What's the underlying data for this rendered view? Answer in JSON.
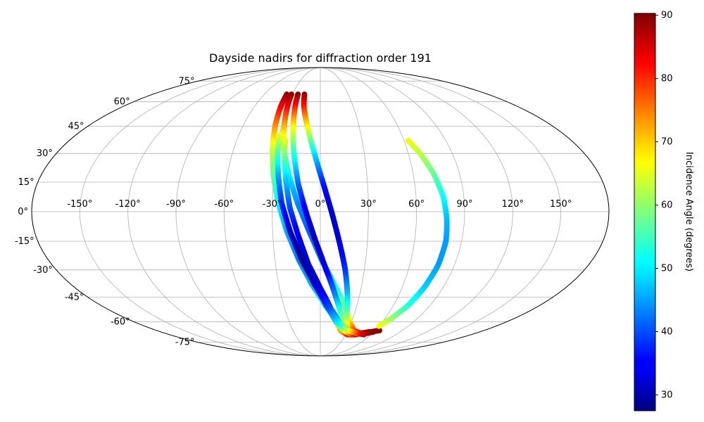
{
  "chart_data": {
    "type": "scatter",
    "projection": "mollweide",
    "title": "Dayside nadirs for diffraction order 191",
    "grid": true,
    "lon_ticks": [
      "-150°",
      "-120°",
      "-90°",
      "-60°",
      "-30°",
      "0°",
      "30°",
      "60°",
      "90°",
      "120°",
      "150°"
    ],
    "lat_ticks": [
      "75°",
      "60°",
      "45°",
      "30°",
      "15°",
      "0°",
      "-15°",
      "-30°",
      "-45°",
      "-60°",
      "-75°"
    ],
    "colorbar": {
      "label": "Incidence Angle (degrees)",
      "colormap": "jet",
      "vmin": 27.5,
      "vmax": 90.3,
      "ticks": [
        "30",
        "40",
        "50",
        "60",
        "70",
        "80",
        "90"
      ]
    },
    "series": [
      {
        "lon": [
          -36,
          -36,
          -35,
          -33,
          -30,
          -26,
          -21,
          -14,
          -6,
          4,
          15,
          22,
          32,
          41,
          49,
          55
        ],
        "lat": [
          65,
          57,
          45,
          32,
          18,
          4,
          -10,
          -25,
          -38,
          -50,
          -60,
          -66,
          -69,
          -69,
          -68,
          -67
        ],
        "inc": [
          90,
          84,
          74,
          64,
          57,
          51,
          46,
          43,
          46,
          52,
          62,
          71,
          80,
          86,
          89,
          90
        ]
      },
      {
        "lon": [
          -31,
          -30,
          -28,
          -25,
          -20,
          -14,
          -7,
          1,
          10,
          20,
          28,
          37,
          46,
          54,
          60
        ],
        "lat": [
          65,
          57,
          45,
          32,
          18,
          4,
          -10,
          -25,
          -38,
          -50,
          -60,
          -66,
          -68,
          -68,
          -67
        ],
        "inc": [
          90,
          84,
          72,
          60,
          50,
          44,
          41,
          44,
          50,
          58,
          68,
          77,
          84,
          88,
          90
        ]
      },
      {
        "lon": [
          -24,
          -23,
          -21,
          -18,
          -14,
          -9,
          -3,
          4,
          12,
          20,
          27,
          36,
          46,
          57,
          65
        ],
        "lat": [
          65,
          57,
          45,
          30,
          14,
          0,
          -15,
          -30,
          -45,
          -58,
          -66,
          -69,
          -68,
          -67,
          -66
        ],
        "inc": [
          90,
          82,
          68,
          54,
          42,
          34,
          31,
          34,
          44,
          58,
          70,
          80,
          86,
          89,
          90
        ]
      },
      {
        "lon": [
          -17,
          -15,
          -10,
          -4,
          2,
          7,
          12,
          17,
          21,
          24,
          30
        ],
        "lat": [
          65,
          57,
          45,
          30,
          14,
          0,
          -15,
          -30,
          -45,
          -58,
          -66
        ],
        "inc": [
          90,
          82,
          68,
          50,
          37,
          32,
          33,
          38,
          48,
          60,
          72
        ]
      },
      {
        "lon": [
          -30,
          -29,
          -27,
          -24,
          -19,
          -12,
          -4,
          5,
          15,
          25,
          34,
          42
        ],
        "lat": [
          40,
          30,
          18,
          4,
          -10,
          -25,
          -38,
          -50,
          -60,
          -66,
          -68,
          -69
        ],
        "inc": [
          66,
          56,
          46,
          38,
          32,
          29,
          31,
          38,
          48,
          60,
          73,
          84
        ]
      },
      {
        "lon": [
          -25,
          -24,
          -22,
          -19,
          -14,
          -8,
          0,
          9,
          19,
          30,
          42,
          52
        ],
        "lat": [
          37,
          28,
          16,
          2,
          -12,
          -27,
          -40,
          -52,
          -61,
          -66,
          -68,
          -69
        ],
        "inc": [
          66,
          58,
          48,
          40,
          34,
          31,
          33,
          40,
          50,
          62,
          76,
          86
        ]
      },
      {
        "lon": [
          63,
          68,
          73,
          77,
          79,
          80,
          79,
          76,
          72,
          66,
          60
        ],
        "lat": [
          37,
          30,
          20,
          8,
          -4,
          -15,
          -28,
          -40,
          -50,
          -58,
          -63
        ],
        "inc": [
          66,
          63,
          58,
          52,
          47,
          45,
          45,
          48,
          53,
          60,
          66
        ]
      }
    ]
  }
}
